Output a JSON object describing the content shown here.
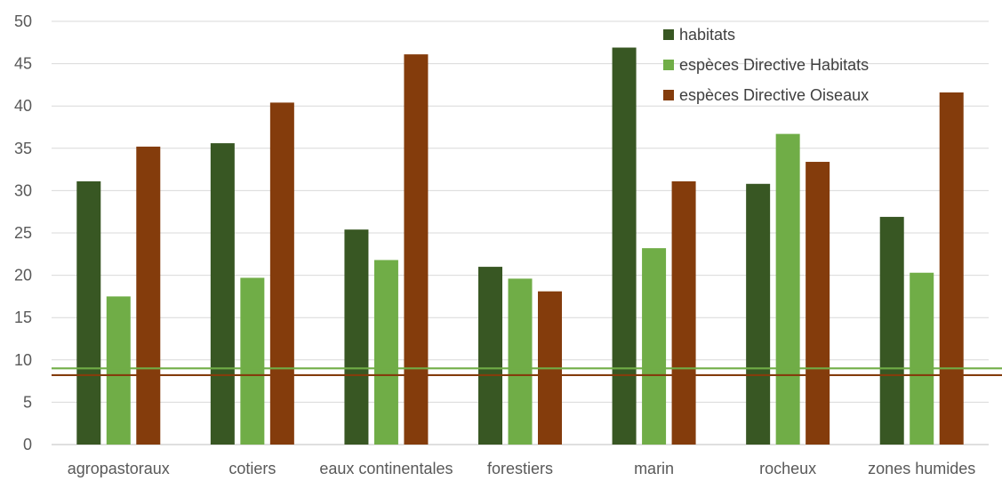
{
  "chart_data": {
    "type": "bar",
    "title": "",
    "xlabel": "",
    "ylabel": "",
    "ylim": [
      0,
      50
    ],
    "yticks": [
      0,
      5,
      10,
      15,
      20,
      25,
      30,
      35,
      40,
      45,
      50
    ],
    "grid": true,
    "legend_position": "top-right",
    "categories": [
      "agropastoraux",
      "cotiers",
      "eaux continentales",
      "forestiers",
      "marin",
      "rocheux",
      "zones humides"
    ],
    "series": [
      {
        "name": "habitats",
        "color": "#385723",
        "values": [
          31.1,
          35.6,
          25.4,
          21.0,
          46.9,
          30.8,
          26.9
        ]
      },
      {
        "name": "espèces Directive Habitats",
        "color": "#70AD47",
        "values": [
          17.5,
          19.7,
          21.8,
          19.6,
          23.2,
          36.7,
          20.3
        ]
      },
      {
        "name": "espèces Directive Oiseaux",
        "color": "#843C0C",
        "values": [
          35.2,
          40.4,
          46.1,
          18.1,
          31.1,
          33.4,
          41.6
        ]
      }
    ],
    "reference_lines": [
      {
        "value": 9.0,
        "color": "#70AD47"
      },
      {
        "value": 8.2,
        "color": "#843C0C"
      }
    ]
  }
}
